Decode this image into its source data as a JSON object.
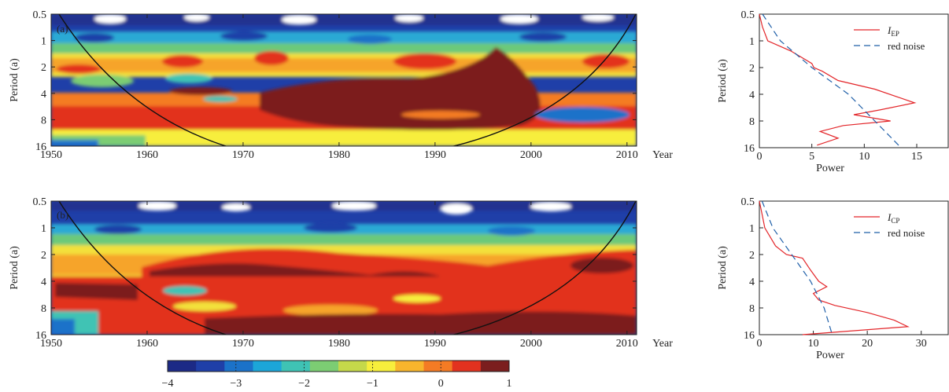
{
  "figure": {
    "colorbar": {
      "ticks": [
        "−4",
        "−3",
        "−2",
        "−1",
        "0",
        "1"
      ],
      "colors": [
        "#1c2a86",
        "#1f3fa8",
        "#1b72c9",
        "#1ca6d8",
        "#3fc3b4",
        "#7ccd73",
        "#c5d84a",
        "#f7ee3c",
        "#f8b52c",
        "#f47b24",
        "#e2321f",
        "#7b1e1e"
      ]
    }
  },
  "chart_data": [
    {
      "panel": "(a)",
      "type": "heatmap",
      "description_type": "wavelet power spectrum",
      "xlabel": "Year",
      "ylabel": "Period (a)",
      "xlim": [
        1950,
        2011
      ],
      "x_ticks": [
        "1950",
        "1960",
        "1970",
        "1980",
        "1990",
        "2000",
        "2010"
      ],
      "y_ticks": [
        "0.5",
        "1",
        "2",
        "4",
        "8",
        "16"
      ],
      "y_scale": "log2",
      "value_range": [
        -4,
        1
      ]
    },
    {
      "panel": "",
      "type": "line",
      "xlabel": "Power",
      "ylabel": "Period (a)",
      "xlim": [
        0,
        18
      ],
      "x_ticks": [
        "0",
        "5",
        "10",
        "15"
      ],
      "y_ticks": [
        "0.5",
        "1",
        "2",
        "4",
        "8",
        "16"
      ],
      "y_scale": "log2",
      "legend": {
        "placement": "top-right",
        "entries": [
          {
            "label_main": "I",
            "label_sub": "EP",
            "style": "solid",
            "color": "#e3262a"
          },
          {
            "label_main": "red  noise",
            "label_sub": "",
            "style": "dashed",
            "color": "#1f5fa8"
          }
        ]
      },
      "series": [
        {
          "name": "I_EP",
          "color": "#e3262a",
          "points": [
            [
              0,
              0.5
            ],
            [
              0.3,
              0.7
            ],
            [
              0.8,
              1.0
            ],
            [
              3.0,
              1.3
            ],
            [
              5.0,
              1.8
            ],
            [
              5.2,
              2.0
            ],
            [
              6.0,
              2.2
            ],
            [
              7.5,
              2.8
            ],
            [
              11.0,
              3.5
            ],
            [
              14.8,
              5.0
            ],
            [
              11.5,
              6.0
            ],
            [
              9.0,
              6.8
            ],
            [
              12.5,
              8.0
            ],
            [
              8.0,
              9.0
            ],
            [
              5.8,
              10.5
            ],
            [
              7.5,
              12.5
            ],
            [
              5.5,
              15.0
            ]
          ]
        },
        {
          "name": "red noise",
          "color": "#1f5fa8",
          "points": [
            [
              0.3,
              0.5
            ],
            [
              2.0,
              1.0
            ],
            [
              5.0,
              2.0
            ],
            [
              8.5,
              4.0
            ],
            [
              11.0,
              8.0
            ],
            [
              13.5,
              16.0
            ]
          ]
        }
      ]
    },
    {
      "panel": "(b)",
      "type": "heatmap",
      "description_type": "wavelet power spectrum",
      "xlabel": "Year",
      "ylabel": "Period (a)",
      "xlim": [
        1950,
        2011
      ],
      "x_ticks": [
        "1950",
        "1960",
        "1970",
        "1980",
        "1990",
        "2000",
        "2010"
      ],
      "y_ticks": [
        "0.5",
        "1",
        "2",
        "4",
        "8",
        "16"
      ],
      "y_scale": "log2",
      "value_range": [
        -4,
        1
      ]
    },
    {
      "panel": "",
      "type": "line",
      "xlabel": "Power",
      "ylabel": "Period (a)",
      "xlim": [
        0,
        35
      ],
      "x_ticks": [
        "0",
        "10",
        "20",
        "30"
      ],
      "y_ticks": [
        "0.5",
        "1",
        "2",
        "4",
        "8",
        "16"
      ],
      "y_scale": "log2",
      "legend": {
        "placement": "top-right",
        "entries": [
          {
            "label_main": "I",
            "label_sub": "CP",
            "style": "solid",
            "color": "#e3262a"
          },
          {
            "label_main": "red  noise",
            "label_sub": "",
            "style": "dashed",
            "color": "#1f5fa8"
          }
        ]
      },
      "series": [
        {
          "name": "I_CP",
          "color": "#e3262a",
          "points": [
            [
              0,
              0.5
            ],
            [
              0.5,
              0.7
            ],
            [
              1.0,
              1.0
            ],
            [
              3.0,
              1.6
            ],
            [
              5.0,
              2.0
            ],
            [
              8.0,
              2.2
            ],
            [
              9.5,
              3.0
            ],
            [
              11.0,
              4.0
            ],
            [
              12.5,
              4.6
            ],
            [
              10.0,
              5.5
            ],
            [
              11.0,
              6.5
            ],
            [
              14.0,
              7.5
            ],
            [
              20.0,
              9.0
            ],
            [
              25.0,
              11.0
            ],
            [
              27.5,
              13.0
            ],
            [
              8.0,
              16.0
            ]
          ]
        },
        {
          "name": "red noise",
          "color": "#1f5fa8",
          "points": [
            [
              0.5,
              0.5
            ],
            [
              2.5,
              1.0
            ],
            [
              6.0,
              2.0
            ],
            [
              9.5,
              4.0
            ],
            [
              12.0,
              8.0
            ],
            [
              13.5,
              16.0
            ]
          ]
        }
      ]
    }
  ]
}
